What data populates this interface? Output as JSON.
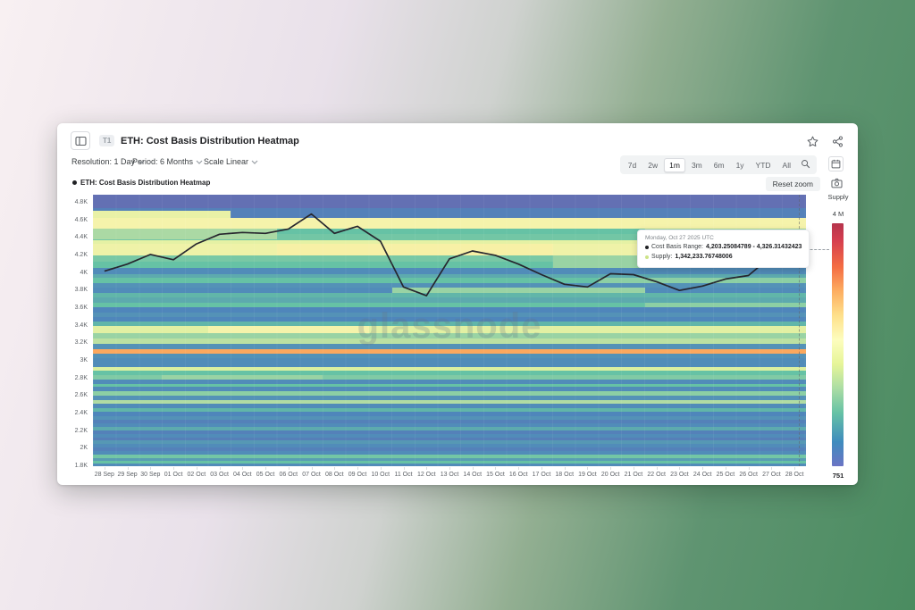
{
  "card": {
    "header": {
      "badge": "T1",
      "title": "ETH: Cost Basis Distribution Heatmap"
    },
    "controls": {
      "resolution": "Resolution: 1 Day",
      "period": "Period: 6 Months",
      "scale": "Scale Linear",
      "ranges": [
        "7d",
        "2w",
        "1m",
        "3m",
        "6m",
        "1y",
        "YTD",
        "All"
      ],
      "selected_range": "1m"
    },
    "legend": {
      "series": "ETH: Cost Basis Distribution Heatmap",
      "reset_zoom": "Reset zoom"
    }
  },
  "chart_data": {
    "type": "heatmap",
    "title": "ETH: Cost Basis Distribution Heatmap",
    "watermark": "glassnode",
    "x_categories": [
      "28 Sep",
      "29 Sep",
      "30 Sep",
      "01 Oct",
      "02 Oct",
      "03 Oct",
      "04 Oct",
      "05 Oct",
      "06 Oct",
      "07 Oct",
      "08 Oct",
      "09 Oct",
      "10 Oct",
      "11 Oct",
      "12 Oct",
      "13 Oct",
      "14 Oct",
      "15 Oct",
      "16 Oct",
      "17 Oct",
      "18 Oct",
      "19 Oct",
      "20 Oct",
      "21 Oct",
      "22 Oct",
      "23 Oct",
      "24 Oct",
      "25 Oct",
      "26 Oct",
      "27 Oct",
      "28 Oct"
    ],
    "y_tick_labels": [
      "4.8K",
      "4.6K",
      "4.4K",
      "4.2K",
      "4K",
      "3.8K",
      "3.6K",
      "3.4K",
      "3.2K",
      "3K",
      "2.8K",
      "2.6K",
      "2.4K",
      "2.2K",
      "2K",
      "1.8K"
    ],
    "y_axis_range_k": [
      1.8,
      4.89
    ],
    "colorbar": {
      "label": "Supply",
      "max": "4 M",
      "min": "751"
    },
    "price_line": {
      "values_k": [
        4.02,
        4.1,
        4.21,
        4.15,
        4.33,
        4.44,
        4.46,
        4.45,
        4.5,
        4.67,
        4.45,
        4.53,
        4.36,
        3.84,
        3.74,
        4.16,
        4.25,
        4.2,
        4.1,
        3.98,
        3.87,
        3.84,
        3.99,
        3.98,
        3.9,
        3.8,
        3.85,
        3.93,
        3.97,
        4.19,
        4.12
      ]
    },
    "supply_rows": {
      "format": [
        "price_low_k",
        "price_high_k",
        "relative_supply_intensity"
      ],
      "rows": [
        [
          4.74,
          4.89,
          0.03
        ],
        [
          4.63,
          4.74,
          0.1
        ],
        [
          4.5,
          4.63,
          0.5
        ],
        [
          4.44,
          4.5,
          0.22
        ],
        [
          4.37,
          4.44,
          0.24
        ],
        [
          4.33,
          4.37,
          0.45
        ],
        [
          4.2,
          4.33,
          0.48
        ],
        [
          4.13,
          4.2,
          0.25
        ],
        [
          4.06,
          4.13,
          0.22
        ],
        [
          3.99,
          4.06,
          0.13
        ],
        [
          3.94,
          3.99,
          0.18
        ],
        [
          3.88,
          3.94,
          0.22
        ],
        [
          3.83,
          3.88,
          0.14
        ],
        [
          3.77,
          3.83,
          0.13
        ],
        [
          3.72,
          3.77,
          0.2
        ],
        [
          3.66,
          3.72,
          0.18
        ],
        [
          3.61,
          3.66,
          0.22
        ],
        [
          3.55,
          3.61,
          0.12
        ],
        [
          3.5,
          3.55,
          0.14
        ],
        [
          3.45,
          3.5,
          0.12
        ],
        [
          3.4,
          3.45,
          0.2
        ],
        [
          3.31,
          3.4,
          0.44
        ],
        [
          3.25,
          3.31,
          0.3
        ],
        [
          3.19,
          3.25,
          0.36
        ],
        [
          3.13,
          3.19,
          0.14
        ],
        [
          3.08,
          3.13,
          0.72
        ],
        [
          3.03,
          3.08,
          0.14
        ],
        [
          2.98,
          3.03,
          0.13
        ],
        [
          2.93,
          2.98,
          0.13
        ],
        [
          2.89,
          2.93,
          0.42
        ],
        [
          2.84,
          2.89,
          0.22
        ],
        [
          2.79,
          2.84,
          0.26
        ],
        [
          2.74,
          2.79,
          0.13
        ],
        [
          2.7,
          2.74,
          0.22
        ],
        [
          2.65,
          2.7,
          0.13
        ],
        [
          2.6,
          2.65,
          0.28
        ],
        [
          2.55,
          2.6,
          0.14
        ],
        [
          2.51,
          2.55,
          0.34
        ],
        [
          2.46,
          2.51,
          0.13
        ],
        [
          2.42,
          2.46,
          0.2
        ],
        [
          2.37,
          2.42,
          0.12
        ],
        [
          2.33,
          2.37,
          0.14
        ],
        [
          2.29,
          2.33,
          0.1
        ],
        [
          2.25,
          2.29,
          0.13
        ],
        [
          2.21,
          2.25,
          0.18
        ],
        [
          2.17,
          2.21,
          0.1
        ],
        [
          2.13,
          2.17,
          0.13
        ],
        [
          2.09,
          2.13,
          0.09
        ],
        [
          2.05,
          2.09,
          0.15
        ],
        [
          2.01,
          2.05,
          0.13
        ],
        [
          1.97,
          2.01,
          0.1
        ],
        [
          1.93,
          1.97,
          0.13
        ],
        [
          1.89,
          1.93,
          0.24
        ],
        [
          1.86,
          1.89,
          0.16
        ],
        [
          1.83,
          1.86,
          0.22
        ],
        [
          1.8,
          1.83,
          0.13
        ]
      ]
    },
    "patches": {
      "format": [
        "day_start",
        "day_end",
        "price_low_k",
        "price_high_k",
        "relative_supply_intensity"
      ],
      "rows": [
        [
          20,
          31,
          4.06,
          4.2,
          0.3
        ],
        [
          13,
          24,
          3.77,
          3.83,
          0.3
        ],
        [
          0,
          8,
          4.38,
          4.5,
          0.33
        ],
        [
          8,
          20,
          4.2,
          4.33,
          0.52
        ],
        [
          22,
          31,
          3.88,
          3.94,
          0.28
        ],
        [
          0,
          6,
          4.63,
          4.71,
          0.46
        ],
        [
          24,
          31,
          3.61,
          3.66,
          0.28
        ],
        [
          5,
          12,
          3.31,
          3.4,
          0.5
        ],
        [
          3,
          10,
          2.79,
          2.84,
          0.3
        ],
        [
          24,
          31,
          4.44,
          4.5,
          0.3
        ]
      ]
    },
    "highlight_cell": {
      "price_low_k": 4.2,
      "price_high_k": 4.33,
      "day_start": 29.8,
      "day_end": 31
    },
    "tooltip": {
      "date": "Monday, Oct 27 2025 UTC",
      "cost_basis_label": "Cost Basis Range:",
      "cost_basis_value": "4,203.25084789 - 4,326.31432423",
      "supply_label": "Supply:",
      "supply_value": "1,342,233.76748006",
      "supply_dot_color": "#cde388"
    },
    "colors": {
      "line": "#26262e",
      "colormap_stops": [
        [
          0,
          "#6a68b0"
        ],
        [
          0.12,
          "#4f86bb"
        ],
        [
          0.22,
          "#66c2a5"
        ],
        [
          0.32,
          "#a6d7a4"
        ],
        [
          0.42,
          "#dcefa0"
        ],
        [
          0.5,
          "#f5f3ab"
        ],
        [
          0.62,
          "#fee08b"
        ],
        [
          0.72,
          "#fca85e"
        ],
        [
          0.85,
          "#ef6a45"
        ],
        [
          1,
          "#c13a4e"
        ]
      ]
    }
  }
}
